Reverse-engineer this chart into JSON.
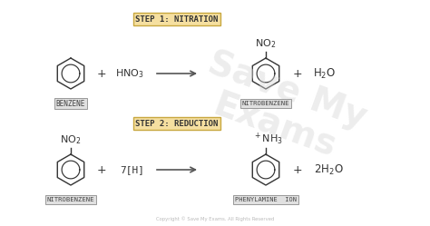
{
  "bg_color": "#ffffff",
  "step_box_color": "#f5dfa0",
  "step_box_edge": "#c8a840",
  "step1_text": "STEP 1: NITRATION",
  "step2_text": "STEP 2: REDUCTION",
  "label_box_color": "#e0e0e0",
  "label_box_edge": "#999999",
  "label_text_color": "#444444",
  "dark": "#333333",
  "arrow_color": "#555555",
  "copyright_text": "Copyright © Save My Exams. All Rights Reserved",
  "copyright_color": "#bbbbbb",
  "watermark_color": "#d8d8d8"
}
